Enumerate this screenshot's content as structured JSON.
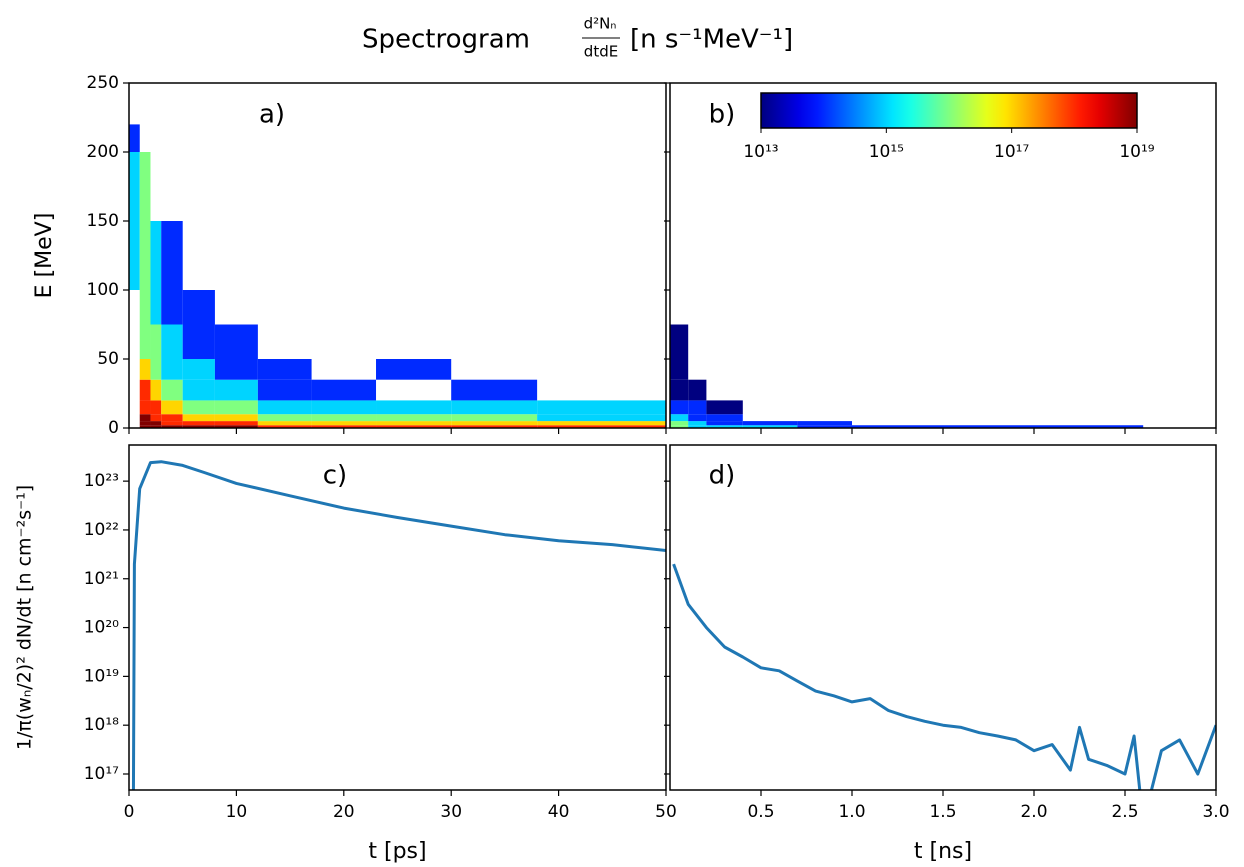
{
  "figure": {
    "title": "Spectrogram",
    "title_numerator": "d²Nₙ",
    "title_denominator": "dtdE",
    "title_units": "[n s⁻¹MeV⁻¹]"
  },
  "chart_data": [
    {
      "type": "heatmap",
      "label": "a)",
      "ylabel": "E [MeV]",
      "xlim": [
        0,
        50
      ],
      "xticks": [
        0,
        10,
        20,
        30,
        40,
        50
      ],
      "xtick_labels": false,
      "ylim": [
        0,
        250
      ],
      "yticks": [
        0,
        50,
        100,
        150,
        200,
        250
      ],
      "ytick_labels": true,
      "colormap": "jet",
      "zlim": [
        10000000000000.0,
        1e+19
      ],
      "zlog": true,
      "x_edges": [
        0,
        1,
        2,
        3,
        5,
        8,
        12,
        17,
        23,
        30,
        38,
        50
      ],
      "y_edges": [
        0,
        2,
        5,
        10,
        20,
        35,
        50,
        75,
        100,
        150,
        200,
        220
      ],
      "z": [
        [
          null,
          1e+19,
          1e+19,
          1e+19,
          1e+19,
          1e+19,
          1e+18,
          1e+18,
          1e+18,
          1e+18,
          1e+18
        ],
        [
          null,
          1e+19,
          1e+19,
          1e+18,
          1e+18,
          1e+18,
          1e+17,
          1e+17,
          1e+17,
          1e+17,
          1e+17
        ],
        [
          null,
          1e+19,
          1e+18,
          1e+18,
          1e+17,
          1e+17,
          1e+16,
          1e+16,
          1e+16,
          1e+16,
          1000000000000000.0
        ],
        [
          null,
          1e+18,
          1e+18,
          1e+17,
          1e+16,
          1e+16,
          1000000000000000.0,
          1000000000000000.0,
          1000000000000000.0,
          1000000000000000.0,
          1000000000000000.0
        ],
        [
          null,
          1e+18,
          1e+17,
          1e+16,
          1000000000000000.0,
          1000000000000000.0,
          100000000000000.0,
          100000000000000.0,
          null,
          100000000000000.0,
          null
        ],
        [
          null,
          1e+17,
          1e+16,
          1000000000000000.0,
          1000000000000000.0,
          100000000000000.0,
          100000000000000.0,
          null,
          100000000000000.0,
          null,
          null
        ],
        [
          null,
          1e+16,
          1e+16,
          1000000000000000.0,
          100000000000000.0,
          100000000000000.0,
          null,
          null,
          null,
          null,
          null
        ],
        [
          null,
          1e+16,
          1000000000000000.0,
          100000000000000.0,
          100000000000000.0,
          null,
          null,
          null,
          null,
          null,
          null
        ],
        [
          1000000000000000.0,
          1e+16,
          1000000000000000.0,
          100000000000000.0,
          null,
          null,
          null,
          null,
          null,
          null,
          null
        ],
        [
          1000000000000000.0,
          1e+16,
          null,
          null,
          null,
          null,
          null,
          null,
          null,
          null,
          null
        ],
        [
          100000000000000.0,
          null,
          null,
          null,
          null,
          null,
          null,
          null,
          null,
          null,
          null
        ]
      ]
    },
    {
      "type": "heatmap",
      "label": "b)",
      "xlim": [
        0,
        3
      ],
      "xticks": [
        0.5,
        {
          "value": 1,
          "label": "1.0"
        },
        1.5,
        {
          "value": 2,
          "label": "2.0"
        },
        2.5,
        {
          "value": 3,
          "label": "3.0"
        }
      ],
      "xtick_labels": false,
      "ylim": [
        0,
        250
      ],
      "yticks": [
        0,
        50,
        100,
        150,
        200,
        250
      ],
      "ytick_labels": false,
      "colormap": "jet",
      "zlim": [
        10000000000000.0,
        1e+19
      ],
      "zlog": true,
      "x_edges": [
        0,
        0.1,
        0.2,
        0.4,
        0.7,
        1.0,
        1.5,
        2.0,
        2.6
      ],
      "y_edges": [
        0,
        2,
        5,
        10,
        20,
        35,
        50,
        75
      ],
      "z": [
        [
          1e+16,
          1000000000000000.0,
          1000000000000000.0,
          1000000000000000.0,
          100000000000000.0,
          100000000000000.0,
          100000000000000.0,
          100000000000000.0
        ],
        [
          1e+16,
          1000000000000000.0,
          100000000000000.0,
          100000000000000.0,
          100000000000000.0,
          null,
          null,
          null
        ],
        [
          1000000000000000.0,
          100000000000000.0,
          100000000000000.0,
          null,
          null,
          null,
          null,
          null
        ],
        [
          100000000000000.0,
          100000000000000.0,
          10000000000000.0,
          null,
          null,
          null,
          null,
          null
        ],
        [
          10000000000000.0,
          10000000000000.0,
          null,
          null,
          null,
          null,
          null,
          null
        ],
        [
          10000000000000.0,
          null,
          null,
          null,
          null,
          null,
          null,
          null
        ],
        [
          10000000000000.0,
          null,
          null,
          null,
          null,
          null,
          null,
          null
        ]
      ],
      "colorbar": {
        "ticks": [
          {
            "value": 10000000000000.0,
            "label": "10¹³"
          },
          {
            "value": 1000000000000000.0,
            "label": "10¹⁵"
          },
          {
            "value": 1e+17,
            "label": "10¹⁷"
          },
          {
            "value": 1e+19,
            "label": "10¹⁹"
          }
        ]
      }
    },
    {
      "type": "line",
      "label": "c)",
      "xlabel": "t [ps]",
      "ylabel": "1/π(wₙ/2)² dN/dt [n cm⁻²s⁻¹]",
      "xlim": [
        0,
        50
      ],
      "xticks": [
        0,
        10,
        20,
        30,
        40,
        50
      ],
      "xtick_labels": true,
      "ylim": [
        4.7e+16,
        5.5e+23
      ],
      "ylog": true,
      "ytick_labels": true,
      "yticks": [
        {
          "value": 1e+17,
          "label": "10¹⁷"
        },
        {
          "value": 1e+18,
          "label": "10¹⁸"
        },
        {
          "value": 1e+19,
          "label": "10¹⁹"
        },
        {
          "value": 1e+20,
          "label": "10²⁰"
        },
        {
          "value": 1e+21,
          "label": "10²¹"
        },
        {
          "value": 1e+22,
          "label": "10²²"
        },
        {
          "value": 1e+23,
          "label": "10²³"
        }
      ],
      "color": "#1f77b4",
      "x": [
        0.4,
        0.5,
        1,
        2,
        3,
        5,
        7,
        10,
        15,
        20,
        25,
        30,
        35,
        40,
        45,
        50
      ],
      "values": [
        1e+16,
        2e+21,
        7e+22,
        2.4e+23,
        2.5e+23,
        2.1e+23,
        1.5e+23,
        9e+22,
        5e+22,
        2.8e+22,
        1.8e+22,
        1.2e+22,
        8e+21,
        6e+21,
        5e+21,
        3.8e+21
      ]
    },
    {
      "type": "line",
      "label": "d)",
      "xlabel": "t [ns]",
      "xlim": [
        0,
        3
      ],
      "xticks": [
        0.5,
        {
          "value": 1,
          "label": "1.0"
        },
        1.5,
        {
          "value": 2,
          "label": "2.0"
        },
        2.5,
        {
          "value": 3,
          "label": "3.0"
        }
      ],
      "xtick_labels": true,
      "ylim": [
        4.7e+16,
        5.5e+23
      ],
      "ylog": true,
      "ytick_labels": false,
      "yticks": [
        {
          "value": 1e+17,
          "label": "10¹⁷"
        },
        {
          "value": 1e+18,
          "label": "10¹⁸"
        },
        {
          "value": 1e+19,
          "label": "10¹⁹"
        },
        {
          "value": 1e+20,
          "label": "10²⁰"
        },
        {
          "value": 1e+21,
          "label": "10²¹"
        },
        {
          "value": 1e+22,
          "label": "10²²"
        },
        {
          "value": 1e+23,
          "label": "10²³"
        }
      ],
      "color": "#1f77b4",
      "x": [
        0.02,
        0.1,
        0.2,
        0.3,
        0.4,
        0.5,
        0.6,
        0.7,
        0.8,
        0.9,
        1.0,
        1.1,
        1.2,
        1.3,
        1.4,
        1.5,
        1.6,
        1.7,
        1.8,
        1.9,
        2.0,
        2.1,
        2.2,
        2.25,
        2.3,
        2.4,
        2.5,
        2.55,
        2.6,
        2.7,
        2.8,
        2.9,
        3.0
      ],
      "values": [
        2e+21,
        3e+20,
        1e+20,
        4e+19,
        2.5e+19,
        1.5e+19,
        1.3e+19,
        8e+18,
        5e+18,
        4e+18,
        3e+18,
        3.5e+18,
        2e+18,
        1.5e+18,
        1.2e+18,
        1e+18,
        9e+17,
        7e+17,
        6e+17,
        5e+17,
        3e+17,
        4e+17,
        1.2e+17,
        9e+17,
        2e+17,
        1.5e+17,
        1e+17,
        6e+17,
        1e+16,
        3e+17,
        5e+17,
        1e+17,
        1e+18
      ]
    }
  ]
}
